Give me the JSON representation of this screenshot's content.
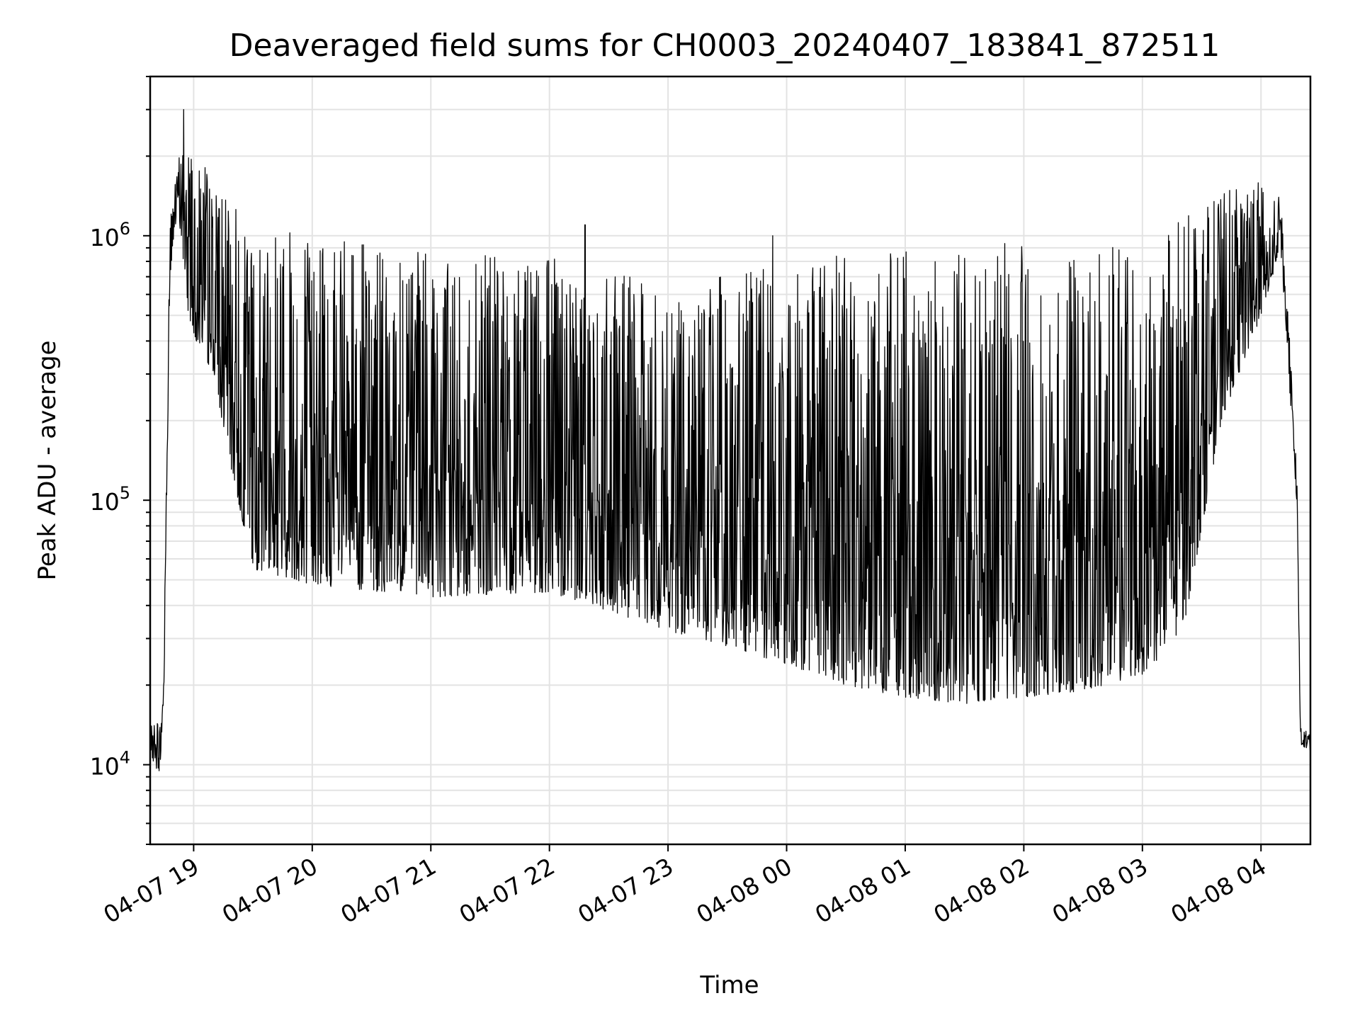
{
  "chart_data": {
    "type": "line",
    "title": "Deaveraged field sums for CH0003_20240407_183841_872511",
    "xlabel": "Time",
    "ylabel": "Peak ADU - average",
    "yscale": "log",
    "grid": true,
    "line_color": "#000000",
    "xlim": [
      "2024-04-07 18:38",
      "2024-04-08 04:25"
    ],
    "ylim": [
      5000,
      4000000
    ],
    "x_ticks": [
      {
        "value": "2024-04-07 19:00",
        "label": "04-07 19"
      },
      {
        "value": "2024-04-07 20:00",
        "label": "04-07 20"
      },
      {
        "value": "2024-04-07 21:00",
        "label": "04-07 21"
      },
      {
        "value": "2024-04-07 22:00",
        "label": "04-07 22"
      },
      {
        "value": "2024-04-07 23:00",
        "label": "04-07 23"
      },
      {
        "value": "2024-04-08 00:00",
        "label": "04-08 00"
      },
      {
        "value": "2024-04-08 01:00",
        "label": "04-08 01"
      },
      {
        "value": "2024-04-08 02:00",
        "label": "04-08 02"
      },
      {
        "value": "2024-04-08 03:00",
        "label": "04-08 03"
      },
      {
        "value": "2024-04-08 04:00",
        "label": "04-08 04"
      }
    ],
    "y_ticks": [
      {
        "value": 10000,
        "base": "10",
        "exp": "4"
      },
      {
        "value": 100000,
        "base": "10",
        "exp": "5"
      },
      {
        "value": 1000000,
        "base": "10",
        "exp": "6"
      }
    ],
    "series": [
      {
        "lower_envelope": [
          [
            "2024-04-07 18:38",
            11000
          ],
          [
            "2024-04-07 18:43",
            9000
          ],
          [
            "2024-04-07 18:45",
            20000
          ],
          [
            "2024-04-07 18:48",
            700000
          ],
          [
            "2024-04-07 18:52",
            1300000
          ],
          [
            "2024-04-07 18:58",
            450000
          ],
          [
            "2024-04-07 19:10",
            300000
          ],
          [
            "2024-04-07 19:20",
            120000
          ],
          [
            "2024-04-07 19:30",
            55000
          ],
          [
            "2024-04-07 20:00",
            48000
          ],
          [
            "2024-04-07 21:00",
            43000
          ],
          [
            "2024-04-07 22:00",
            45000
          ],
          [
            "2024-04-07 22:30",
            38000
          ],
          [
            "2024-04-07 23:00",
            32000
          ],
          [
            "2024-04-07 23:30",
            28000
          ],
          [
            "2024-04-08 00:00",
            24000
          ],
          [
            "2024-04-08 00:30",
            20000
          ],
          [
            "2024-04-08 01:00",
            18000
          ],
          [
            "2024-04-08 01:30",
            17000
          ],
          [
            "2024-04-08 02:00",
            18000
          ],
          [
            "2024-04-08 02:30",
            19000
          ],
          [
            "2024-04-08 03:00",
            22000
          ],
          [
            "2024-04-08 03:20",
            30000
          ],
          [
            "2024-04-08 03:40",
            200000
          ],
          [
            "2024-04-08 04:00",
            500000
          ],
          [
            "2024-04-08 04:10",
            900000
          ],
          [
            "2024-04-08 04:18",
            100000
          ],
          [
            "2024-04-08 04:20",
            12000
          ],
          [
            "2024-04-08 04:25",
            11000
          ]
        ],
        "upper_envelope": [
          [
            "2024-04-07 18:38",
            14000
          ],
          [
            "2024-04-07 18:43",
            15000
          ],
          [
            "2024-04-07 18:45",
            30000
          ],
          [
            "2024-04-07 18:48",
            1200000
          ],
          [
            "2024-04-07 18:52",
            1800000
          ],
          [
            "2024-04-07 18:55",
            3000000
          ],
          [
            "2024-04-07 19:10",
            1500000
          ],
          [
            "2024-04-07 19:30",
            1200000
          ],
          [
            "2024-04-07 20:00",
            1000000
          ],
          [
            "2024-04-07 21:00",
            850000
          ],
          [
            "2024-04-07 22:00",
            850000
          ],
          [
            "2024-04-07 23:00",
            650000
          ],
          [
            "2024-04-08 00:00",
            800000
          ],
          [
            "2024-04-08 01:00",
            900000
          ],
          [
            "2024-04-08 02:00",
            950000
          ],
          [
            "2024-04-08 03:00",
            900000
          ],
          [
            "2024-04-08 03:40",
            1500000
          ],
          [
            "2024-04-08 04:00",
            1600000
          ],
          [
            "2024-04-08 04:10",
            1400000
          ],
          [
            "2024-04-08 04:18",
            150000
          ],
          [
            "2024-04-08 04:20",
            14000
          ],
          [
            "2024-04-08 04:25",
            13000
          ]
        ],
        "peaks": [
          {
            "x": "2024-04-07 18:55",
            "y": 3000000
          },
          {
            "x": "2024-04-07 22:18",
            "y": 1100000
          },
          {
            "x": "2024-04-07 23:53",
            "y": 1000000
          }
        ]
      }
    ]
  }
}
